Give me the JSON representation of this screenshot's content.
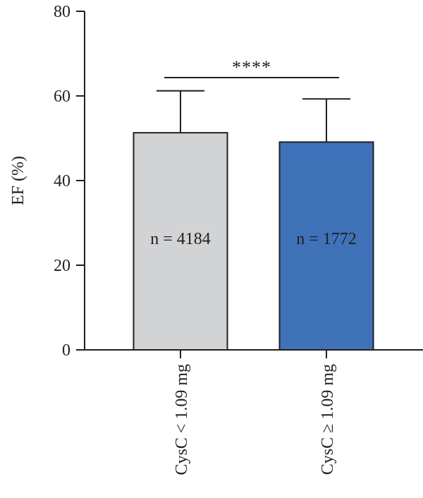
{
  "chart_data": {
    "type": "bar",
    "ylabel": "EF (%)",
    "xlabel": "",
    "ylim": [
      0,
      80
    ],
    "yticks": [
      0,
      20,
      40,
      60,
      80
    ],
    "categories": [
      "CysC < 1.09 mg",
      "CysC ≥ 1.09 mg"
    ],
    "values": [
      51.3,
      49.1
    ],
    "error_upper": [
      61.2,
      59.3
    ],
    "bar_labels": [
      "n = 4184",
      "n = 1772"
    ],
    "colors": [
      "#d1d3d4",
      "#3f72b9"
    ],
    "significance": {
      "label": "****",
      "between": [
        0,
        1
      ]
    },
    "grid": false,
    "legend": "none"
  }
}
